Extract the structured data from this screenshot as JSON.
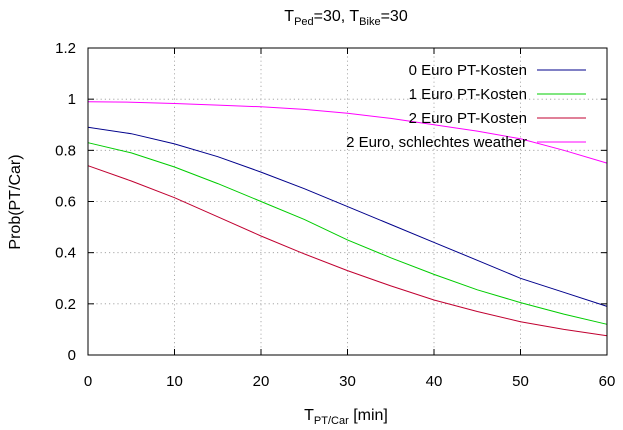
{
  "chart_data": {
    "type": "line",
    "title": {
      "t1_base": "T",
      "t1_sub": "Ped",
      "t1_rest": "=30, ",
      "t2_base": "T",
      "t2_sub": "Bike",
      "t2_rest": "=30"
    },
    "xlabel": {
      "base": "T",
      "sub": "PT/Car",
      "rest": " [min]"
    },
    "ylabel": "Prob(PT/Car)",
    "xlim": [
      0,
      60
    ],
    "ylim": [
      0,
      1.2
    ],
    "xticks": [
      0,
      10,
      20,
      30,
      40,
      50,
      60
    ],
    "yticks": [
      0,
      0.2,
      0.4,
      0.6,
      0.8,
      1,
      1.2
    ],
    "xtick_labels": [
      "0",
      "10",
      "20",
      "30",
      "40",
      "50",
      "60"
    ],
    "ytick_labels": [
      "0",
      "0.2",
      "0.4",
      "0.6",
      "0.8",
      "1",
      "1.2"
    ],
    "grid": true,
    "legend_position": "top-right",
    "x": [
      0,
      5,
      10,
      15,
      20,
      25,
      30,
      35,
      40,
      45,
      50,
      55,
      60
    ],
    "series": [
      {
        "name": "0 Euro PT-Kosten",
        "color": "#00008b",
        "values": [
          0.89,
          0.865,
          0.825,
          0.775,
          0.715,
          0.65,
          0.58,
          0.51,
          0.44,
          0.37,
          0.3,
          0.245,
          0.19
        ]
      },
      {
        "name": "1 Euro PT-Kosten",
        "color": "#00cc00",
        "values": [
          0.83,
          0.79,
          0.735,
          0.67,
          0.6,
          0.53,
          0.45,
          0.38,
          0.315,
          0.255,
          0.205,
          0.16,
          0.12
        ]
      },
      {
        "name": "2 Euro PT-Kosten",
        "color": "#c00030",
        "values": [
          0.74,
          0.68,
          0.615,
          0.54,
          0.465,
          0.395,
          0.33,
          0.27,
          0.215,
          0.17,
          0.13,
          0.1,
          0.075
        ]
      },
      {
        "name": "2 Euro, schlechtes weather",
        "color": "#ff00ff",
        "values": [
          0.99,
          0.988,
          0.983,
          0.977,
          0.97,
          0.96,
          0.945,
          0.925,
          0.9,
          0.875,
          0.845,
          0.8,
          0.75
        ]
      }
    ]
  }
}
